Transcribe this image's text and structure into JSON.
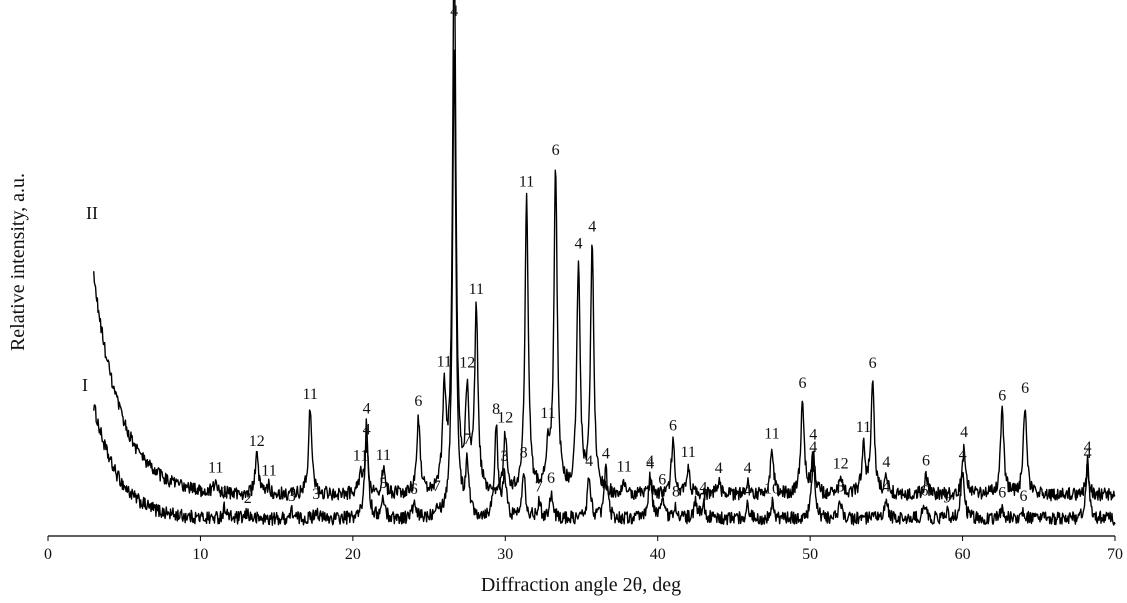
{
  "chart_data": {
    "type": "line",
    "title": "",
    "xlabel": "Diffraction angle 2θ, deg",
    "ylabel": "Relative intensity, a.u.",
    "xlim": [
      0,
      70
    ],
    "xticks": [
      "0",
      "10",
      "20",
      "30",
      "40",
      "50",
      "60",
      "70"
    ],
    "grid": false,
    "legend": "none",
    "line_color": "#000000",
    "series": [
      {
        "name": "I",
        "baseline": 4,
        "background_decay": {
          "amplitude": 60,
          "rate": 0.62,
          "start": 3.0
        },
        "peaks": [
          {
            "x": 11.6,
            "h": 6,
            "label": "1"
          },
          {
            "x": 13.1,
            "h": 3,
            "label": "2"
          },
          {
            "x": 16.0,
            "h": 4,
            "label": "3"
          },
          {
            "x": 17.6,
            "h": 5,
            "label": "3"
          },
          {
            "x": 20.9,
            "h": 50,
            "label": "4"
          },
          {
            "x": 22.0,
            "h": 10,
            "label": "5"
          },
          {
            "x": 24.0,
            "h": 7,
            "label": "6"
          },
          {
            "x": 25.5,
            "h": 6,
            "label": "7"
          },
          {
            "x": 26.65,
            "h": 250,
            "label": ""
          },
          {
            "x": 27.5,
            "h": 28,
            "label": "7"
          },
          {
            "x": 29.4,
            "h": 48,
            "label": "8"
          },
          {
            "x": 29.95,
            "h": 22,
            "label": "3"
          },
          {
            "x": 31.2,
            "h": 26,
            "label": "8"
          },
          {
            "x": 32.2,
            "h": 8,
            "label": "7"
          },
          {
            "x": 33.0,
            "h": 13,
            "label": "6"
          },
          {
            "x": 35.5,
            "h": 22,
            "label": "4"
          },
          {
            "x": 36.6,
            "h": 26,
            "label": "4"
          },
          {
            "x": 39.5,
            "h": 22,
            "label": "4"
          },
          {
            "x": 40.3,
            "h": 12,
            "label": "6"
          },
          {
            "x": 41.2,
            "h": 6,
            "label": "8"
          },
          {
            "x": 42.5,
            "h": 8,
            "label": ""
          },
          {
            "x": 43.0,
            "h": 8,
            "label": "4"
          },
          {
            "x": 45.9,
            "h": 7,
            "label": "4"
          },
          {
            "x": 47.5,
            "h": 8,
            "label": "10"
          },
          {
            "x": 50.2,
            "h": 30,
            "label": "4"
          },
          {
            "x": 52.0,
            "h": 9,
            "label": "3"
          },
          {
            "x": 55.0,
            "h": 9,
            "label": "4"
          },
          {
            "x": 57.5,
            "h": 7,
            "label": "6"
          },
          {
            "x": 59.0,
            "h": 3,
            "label": "9"
          },
          {
            "x": 60.0,
            "h": 26,
            "label": "4"
          },
          {
            "x": 62.6,
            "h": 6,
            "label": "6"
          },
          {
            "x": 64.0,
            "h": 4,
            "label": "6"
          },
          {
            "x": 68.2,
            "h": 30,
            "label": "4"
          }
        ]
      },
      {
        "name": "II",
        "baseline": 128,
        "background_decay": {
          "amplitude": 115,
          "rate": 0.55,
          "start": 3.0
        },
        "peaks": [
          {
            "x": 11.0,
            "h": 5,
            "label": "11"
          },
          {
            "x": 13.7,
            "h": 20,
            "label": "12"
          },
          {
            "x": 14.5,
            "h": 4,
            "label": "11"
          },
          {
            "x": 17.2,
            "h": 45,
            "label": "11"
          },
          {
            "x": 20.5,
            "h": 10,
            "label": "11"
          },
          {
            "x": 20.9,
            "h": 25,
            "label": "4"
          },
          {
            "x": 22.0,
            "h": 12,
            "label": "11"
          },
          {
            "x": 24.3,
            "h": 40,
            "label": "6"
          },
          {
            "x": 26.0,
            "h": 50,
            "label": "11"
          },
          {
            "x": 26.65,
            "h": 290,
            "label": "4"
          },
          {
            "x": 27.5,
            "h": 50,
            "label": "12"
          },
          {
            "x": 28.1,
            "h": 95,
            "label": "11"
          },
          {
            "x": 30.0,
            "h": 30,
            "label": "12"
          },
          {
            "x": 31.4,
            "h": 155,
            "label": "11"
          },
          {
            "x": 32.8,
            "h": 22,
            "label": "11"
          },
          {
            "x": 33.3,
            "h": 170,
            "label": "6"
          },
          {
            "x": 34.8,
            "h": 120,
            "label": "4"
          },
          {
            "x": 35.7,
            "h": 130,
            "label": "4"
          },
          {
            "x": 37.8,
            "h": 6,
            "label": "11"
          },
          {
            "x": 39.5,
            "h": 8,
            "label": "4"
          },
          {
            "x": 41.0,
            "h": 28,
            "label": "6"
          },
          {
            "x": 42.0,
            "h": 14,
            "label": "11"
          },
          {
            "x": 44.0,
            "h": 6,
            "label": "4"
          },
          {
            "x": 45.9,
            "h": 6,
            "label": "4"
          },
          {
            "x": 47.5,
            "h": 24,
            "label": "11"
          },
          {
            "x": 49.5,
            "h": 50,
            "label": "6"
          },
          {
            "x": 50.2,
            "h": 22,
            "label": "4"
          },
          {
            "x": 52.0,
            "h": 8,
            "label": "12"
          },
          {
            "x": 53.5,
            "h": 25,
            "label": "11"
          },
          {
            "x": 54.1,
            "h": 60,
            "label": "6"
          },
          {
            "x": 55.0,
            "h": 8,
            "label": "4"
          },
          {
            "x": 57.6,
            "h": 10,
            "label": "6"
          },
          {
            "x": 60.1,
            "h": 25,
            "label": "4"
          },
          {
            "x": 62.6,
            "h": 44,
            "label": "6"
          },
          {
            "x": 64.1,
            "h": 48,
            "label": "6"
          },
          {
            "x": 68.2,
            "h": 14,
            "label": "4"
          }
        ]
      }
    ]
  }
}
